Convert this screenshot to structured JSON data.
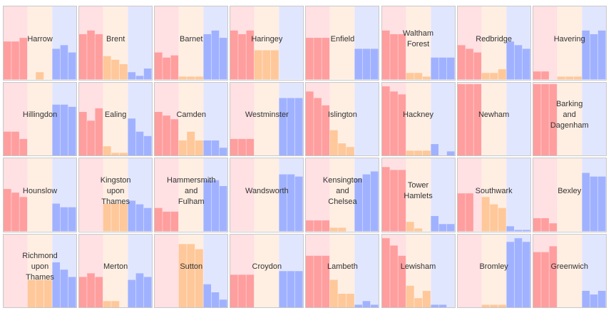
{
  "chart_data": {
    "type": "bar",
    "panel_type": "small-multiples",
    "grid": false,
    "ylim": [
      0,
      1
    ],
    "columns": 8,
    "rows": 4,
    "colors": {
      "bg": [
        "#ffe0e3",
        "#ffefe3",
        "#e1e6ff"
      ],
      "bar": [
        "#ff9e9e",
        "#ffc89a",
        "#a0b2ff"
      ]
    },
    "panels": [
      {
        "name": "Harrow",
        "lines": [
          "Harrow"
        ],
        "values": [
          [
            0.52,
            0.52,
            0.57
          ],
          [
            0,
            0.1,
            0
          ],
          [
            0.42,
            0.47,
            0.37
          ]
        ]
      },
      {
        "name": "Brent",
        "lines": [
          "Brent"
        ],
        "values": [
          [
            0.62,
            0.67,
            0.62
          ],
          [
            0.32,
            0.27,
            0.21
          ],
          [
            0.1,
            0.05,
            0.15
          ]
        ]
      },
      {
        "name": "Barnet",
        "lines": [
          "Barnet"
        ],
        "values": [
          [
            0.37,
            0.3,
            0.33
          ],
          [
            0.04,
            0.04,
            0.04
          ],
          [
            0.62,
            0.67,
            0.57
          ]
        ]
      },
      {
        "name": "Haringey",
        "lines": [
          "Haringey"
        ],
        "values": [
          [
            0.67,
            0.62,
            0.67
          ],
          [
            0.4,
            0.4,
            0.4
          ],
          [
            0,
            0,
            0
          ]
        ]
      },
      {
        "name": "Enfield",
        "lines": [
          "Enfield"
        ],
        "values": [
          [
            0.57,
            0.57,
            0.57
          ],
          [
            0,
            0,
            0
          ],
          [
            0.42,
            0.42,
            0.42
          ]
        ]
      },
      {
        "name": "Waltham Forest",
        "lines": [
          "Waltham",
          "Forest"
        ],
        "values": [
          [
            0.67,
            0.62,
            0.62
          ],
          [
            0.09,
            0.09,
            0.04
          ],
          [
            0.3,
            0.3,
            0.3
          ]
        ]
      },
      {
        "name": "Redbridge",
        "lines": [
          "Redbridge"
        ],
        "values": [
          [
            0.47,
            0.42,
            0.37
          ],
          [
            0.09,
            0.09,
            0.14
          ],
          [
            0.52,
            0.47,
            0.42
          ]
        ]
      },
      {
        "name": "Havering",
        "lines": [
          "Havering"
        ],
        "values": [
          [
            0.11,
            0.11,
            0
          ],
          [
            0.04,
            0.04,
            0.04
          ],
          [
            0.67,
            0.62,
            0.67
          ]
        ]
      },
      {
        "name": "Hillingdon",
        "lines": [
          "Hillingdon"
        ],
        "values": [
          [
            0.33,
            0.33,
            0.23
          ],
          [
            0,
            0,
            0
          ],
          [
            0.7,
            0.7,
            0.67
          ]
        ]
      },
      {
        "name": "Ealing",
        "lines": [
          "Ealing"
        ],
        "values": [
          [
            0.6,
            0.48,
            0.65
          ],
          [
            0.13,
            0.04,
            0.04
          ],
          [
            0.51,
            0.33,
            0.27
          ]
        ]
      },
      {
        "name": "Camden",
        "lines": [
          "Camden"
        ],
        "values": [
          [
            0.6,
            0.55,
            0.5
          ],
          [
            0.21,
            0.33,
            0.21
          ],
          [
            0.21,
            0.21,
            0.11
          ]
        ]
      },
      {
        "name": "Westminster",
        "lines": [
          "Westminster"
        ],
        "values": [
          [
            0.23,
            0.23,
            0.23
          ],
          [
            0,
            0,
            0
          ],
          [
            0.79,
            0.79,
            0.79
          ]
        ]
      },
      {
        "name": "Islington",
        "lines": [
          "Islington"
        ],
        "values": [
          [
            0.88,
            0.79,
            0.69
          ],
          [
            0.35,
            0.17,
            0.12
          ],
          [
            0,
            0,
            0
          ]
        ]
      },
      {
        "name": "Hackney",
        "lines": [
          "Hackney"
        ],
        "values": [
          [
            0.95,
            0.88,
            0.84
          ],
          [
            0.07,
            0.07,
            0.07
          ],
          [
            0.16,
            0,
            0.06
          ]
        ]
      },
      {
        "name": "Newham",
        "lines": [
          "Newham"
        ],
        "values": [
          [
            0.98,
            0.98,
            0.98
          ],
          [
            0,
            0,
            0
          ],
          [
            0,
            0,
            0
          ]
        ]
      },
      {
        "name": "Barking and Dagenham",
        "lines": [
          "Barking",
          "and",
          "Dagenham"
        ],
        "values": [
          [
            0.98,
            0.98,
            0.98
          ],
          [
            0,
            0,
            0
          ],
          [
            0,
            0,
            0
          ]
        ]
      },
      {
        "name": "Hounslow",
        "lines": [
          "Hounslow"
        ],
        "values": [
          [
            0.58,
            0.53,
            0.47
          ],
          [
            0,
            0,
            0
          ],
          [
            0.38,
            0.33,
            0.33
          ]
        ]
      },
      {
        "name": "Kingston upon Thames",
        "lines": [
          "Kingston",
          "upon",
          "Thames"
        ],
        "values": [
          [
            0,
            0,
            0
          ],
          [
            0.38,
            0.38,
            0.38
          ],
          [
            0.42,
            0.37,
            0.32
          ]
        ]
      },
      {
        "name": "Hammersmith and Fulham",
        "lines": [
          "Hammersmith",
          "and",
          "Fulham"
        ],
        "values": [
          [
            0.32,
            0.27,
            0.27
          ],
          [
            0,
            0,
            0
          ],
          [
            0.7,
            0.7,
            0.62
          ]
        ]
      },
      {
        "name": "Wandsworth",
        "lines": [
          "Wandsworth"
        ],
        "values": [
          [
            0,
            0,
            0
          ],
          [
            0,
            0,
            0
          ],
          [
            0.78,
            0.78,
            0.75
          ]
        ]
      },
      {
        "name": "Kensington and Chelsea",
        "lines": [
          "Kensington",
          "and",
          "Chelsea"
        ],
        "values": [
          [
            0.15,
            0.15,
            0.15
          ],
          [
            0.05,
            0.05,
            0
          ],
          [
            0.72,
            0.78,
            0.82
          ]
        ]
      },
      {
        "name": "Tower Hamlets",
        "lines": [
          "Tower",
          "Hamlets"
        ],
        "values": [
          [
            0.88,
            0.84,
            0.84
          ],
          [
            0.13,
            0.04,
            0
          ],
          [
            0.21,
            0.1,
            0.1
          ]
        ]
      },
      {
        "name": "Southwark",
        "lines": [
          "Southwark"
        ],
        "values": [
          [
            0.52,
            0.52,
            0
          ],
          [
            0.47,
            0.37,
            0.32
          ],
          [
            0.07,
            0.02,
            0.02
          ]
        ]
      },
      {
        "name": "Bexley",
        "lines": [
          "Bexley"
        ],
        "values": [
          [
            0.18,
            0.18,
            0.11
          ],
          [
            0,
            0,
            0
          ],
          [
            0.8,
            0.75,
            0.75
          ]
        ]
      },
      {
        "name": "Richmond upon Thames",
        "lines": [
          "Richmond",
          "upon",
          "Thames"
        ],
        "values": [
          [
            0,
            0,
            0
          ],
          [
            0.38,
            0.38,
            0.38
          ],
          [
            0.62,
            0.52,
            0.42
          ]
        ]
      },
      {
        "name": "Merton",
        "lines": [
          "Merton"
        ],
        "values": [
          [
            0.42,
            0.47,
            0.42
          ],
          [
            0.09,
            0.09,
            0
          ],
          [
            0.38,
            0.47,
            0.42
          ]
        ]
      },
      {
        "name": "Sutton",
        "lines": [
          "Sutton"
        ],
        "values": [
          [
            0,
            0,
            0
          ],
          [
            0.87,
            0.87,
            0.8
          ],
          [
            0.32,
            0.21,
            0.11
          ]
        ]
      },
      {
        "name": "Croydon",
        "lines": [
          "Croydon"
        ],
        "values": [
          [
            0.45,
            0.45,
            0.45
          ],
          [
            0,
            0,
            0
          ],
          [
            0.5,
            0.5,
            0.5
          ]
        ]
      },
      {
        "name": "Lambeth",
        "lines": [
          "Lambeth"
        ],
        "values": [
          [
            0.71,
            0.71,
            0.71
          ],
          [
            0.38,
            0.19,
            0.19
          ],
          [
            0.04,
            0.09,
            0.04
          ]
        ]
      },
      {
        "name": "Lewisham",
        "lines": [
          "Lewisham"
        ],
        "values": [
          [
            0.95,
            0.85,
            0.71
          ],
          [
            0.3,
            0.13,
            0.23
          ],
          [
            0.04,
            0.04,
            0
          ]
        ]
      },
      {
        "name": "Bromley",
        "lines": [
          "Bromley"
        ],
        "values": [
          [
            0,
            0,
            0
          ],
          [
            0.04,
            0.04,
            0.04
          ],
          [
            0.9,
            0.95,
            0.9
          ]
        ]
      },
      {
        "name": "Greenwich",
        "lines": [
          "Greenwich"
        ],
        "values": [
          [
            0.76,
            0.76,
            0.84
          ],
          [
            0,
            0,
            0
          ],
          [
            0.23,
            0.18,
            0.23
          ]
        ]
      }
    ]
  }
}
